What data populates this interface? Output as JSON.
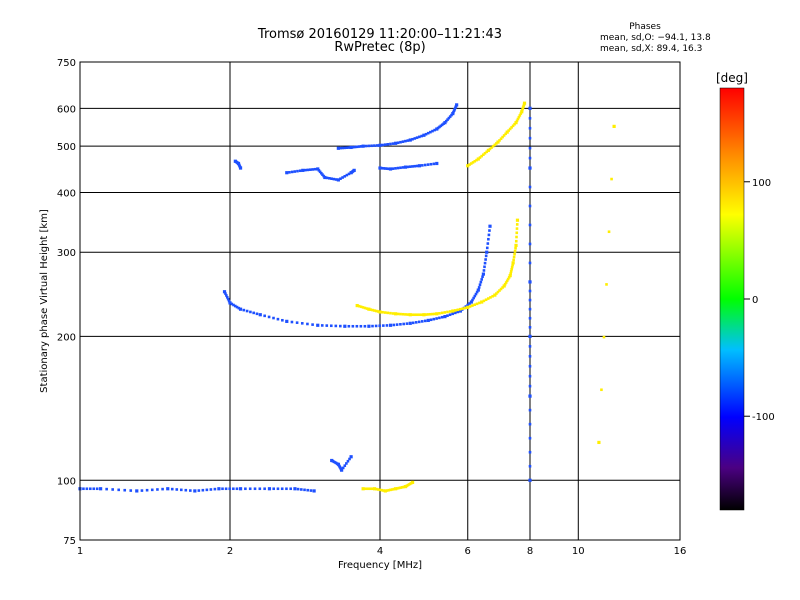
{
  "chart_data": {
    "type": "scatter",
    "title": "Tromsø 20160129 11:20:00–11:21:43",
    "subtitle": "RwPretec (8p)",
    "xlabel": "Frequency [MHz]",
    "ylabel": "Stationary phase Virtual Height [km]",
    "x_scale": "log",
    "y_scale": "log",
    "xlim": [
      1,
      16
    ],
    "ylim": [
      75,
      750
    ],
    "x_ticks": [
      1,
      2,
      4,
      6,
      8,
      10,
      16
    ],
    "y_ticks": [
      75,
      100,
      200,
      300,
      400,
      500,
      600,
      750
    ],
    "grid": true,
    "colorbar": {
      "label": "[deg]",
      "range": [
        -180,
        180
      ],
      "ticks": [
        100,
        0,
        -100
      ]
    },
    "phases": {
      "title": "Phases",
      "line_o": "mean, sd,O: −94.1, 13.8",
      "line_x": "mean, sd,X:  89.4, 16.3"
    },
    "series": [
      {
        "mode": "O",
        "phase_mean": -94.1,
        "traces": [
          {
            "f": [
              1.0,
              1.1,
              1.3,
              1.5,
              1.7,
              1.9,
              2.1,
              2.4,
              2.7,
              2.95
            ],
            "h": [
              96,
              96,
              95,
              96,
              95,
              96,
              96,
              96,
              96,
              95
            ]
          },
          {
            "f": [
              1.95,
              2.0,
              2.1,
              2.3,
              2.6,
              3.0,
              3.4,
              3.8,
              4.2,
              4.6,
              5.0,
              5.4,
              5.8,
              6.1,
              6.3,
              6.45,
              6.55,
              6.65
            ],
            "h": [
              248,
              235,
              228,
              222,
              215,
              211,
              210,
              210,
              211,
              213,
              216,
              220,
              226,
              236,
              250,
              270,
              300,
              340
            ]
          },
          {
            "f": [
              2.05,
              2.08,
              2.1
            ],
            "h": [
              465,
              460,
              450
            ]
          },
          {
            "f": [
              3.3,
              3.5,
              3.7,
              4.0,
              4.3,
              4.6,
              4.9,
              5.2,
              5.4,
              5.6,
              5.7
            ],
            "h": [
              495,
              497,
              500,
              502,
              507,
              515,
              527,
              543,
              560,
              585,
              610
            ]
          },
          {
            "f": [
              2.6,
              2.8,
              3.0,
              3.1,
              3.3,
              3.5,
              3.55
            ],
            "h": [
              440,
              445,
              448,
              430,
              425,
              440,
              445
            ]
          },
          {
            "f": [
              4.0,
              4.2,
              4.5,
              4.8,
              5.2
            ],
            "h": [
              450,
              448,
              452,
              455,
              460
            ]
          },
          {
            "f": [
              8.0,
              8.0,
              8.0,
              8.0,
              8.0,
              8.0
            ],
            "h": [
              600,
              450,
              260,
              200,
              150,
              100
            ]
          },
          {
            "f": [
              3.2,
              3.3,
              3.35,
              3.5
            ],
            "h": [
              110,
              108,
              105,
              112
            ]
          }
        ]
      },
      {
        "mode": "X",
        "phase_mean": 89.4,
        "traces": [
          {
            "f": [
              3.6,
              3.8,
              4.0,
              4.3,
              4.6,
              4.9,
              5.2,
              5.6,
              6.0,
              6.4,
              6.8,
              7.1,
              7.3,
              7.4,
              7.5,
              7.55
            ],
            "h": [
              232,
              228,
              225,
              223,
              222,
              222,
              223,
              226,
              230,
              236,
              244,
              255,
              268,
              285,
              310,
              350
            ]
          },
          {
            "f": [
              3.7,
              3.9,
              4.1,
              4.3,
              4.5,
              4.65
            ],
            "h": [
              96,
              96,
              95,
              96,
              97,
              99
            ]
          },
          {
            "f": [
              6.0,
              6.3,
              6.6,
              6.9,
              7.2,
              7.5,
              7.7,
              7.8
            ],
            "h": [
              455,
              470,
              490,
              510,
              535,
              560,
              590,
              615
            ]
          },
          {
            "f": [
              11.0,
              11.8
            ],
            "h": [
              120,
              550
            ]
          }
        ]
      }
    ]
  }
}
